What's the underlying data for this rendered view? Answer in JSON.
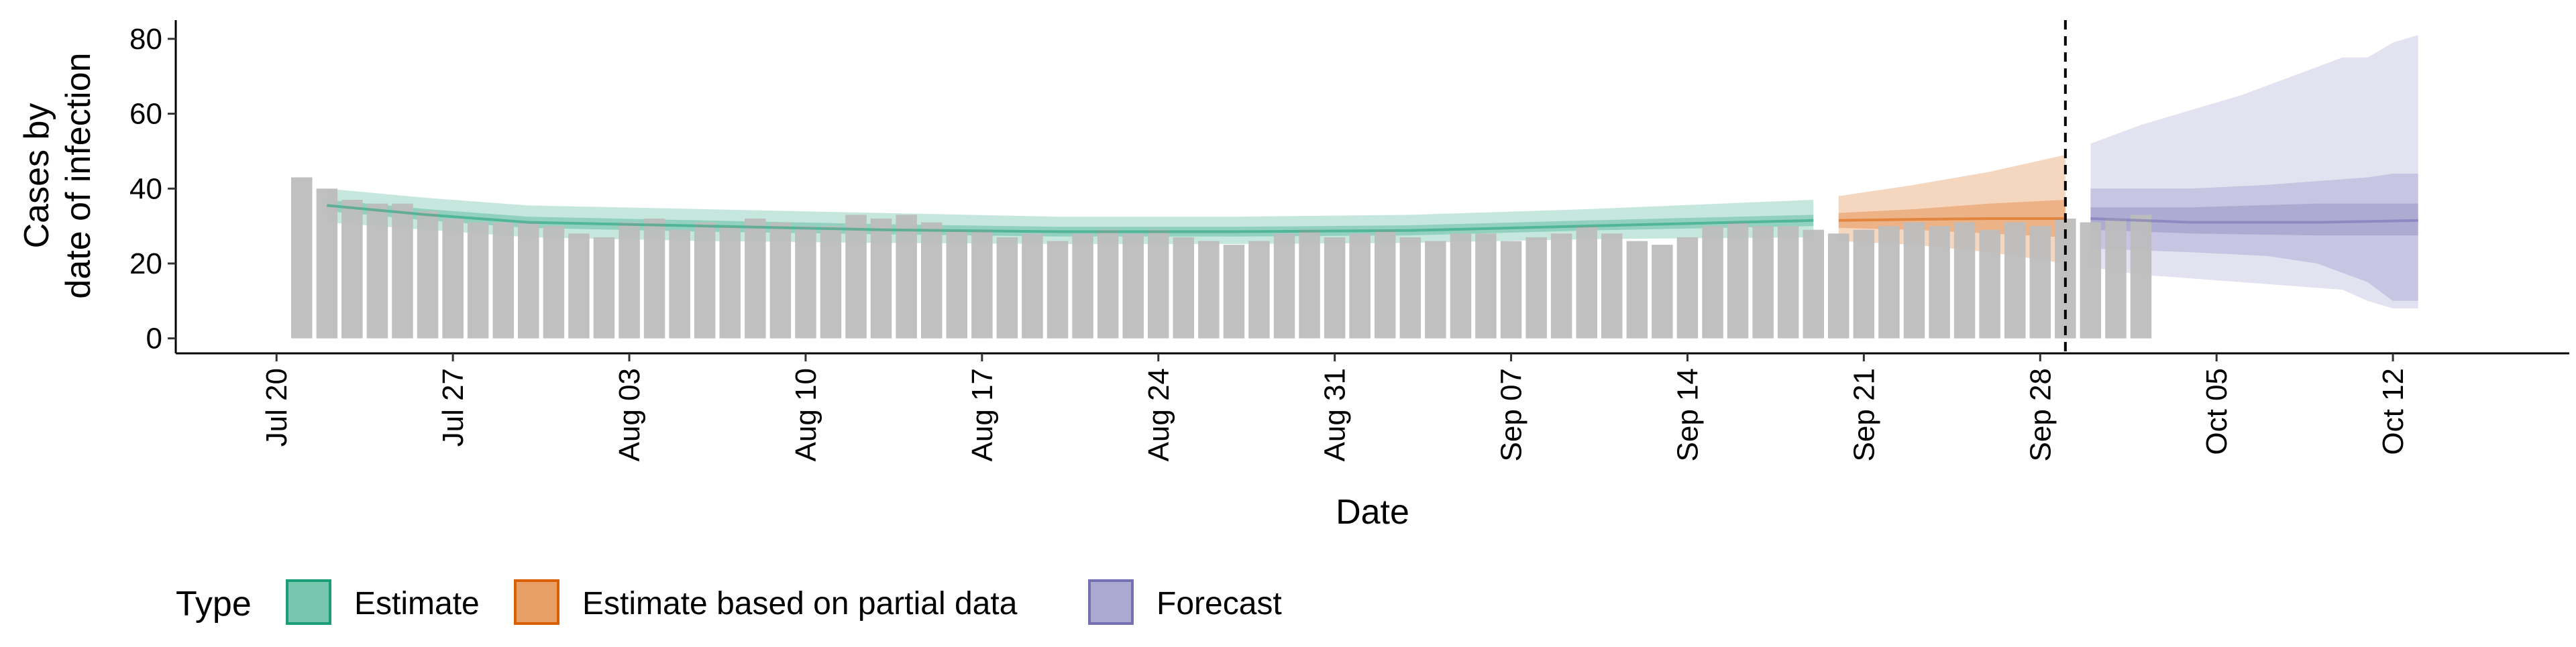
{
  "chart_data": {
    "type": "bar",
    "xlabel": "Date",
    "ylabel_lines": [
      "Cases by",
      "date of infection"
    ],
    "y_ticks": [
      0,
      20,
      40,
      60,
      80
    ],
    "ylim": [
      -4,
      85
    ],
    "x_range": [
      "2020-07-16",
      "2020-10-19"
    ],
    "x_ticks": [
      {
        "date": "2020-07-20",
        "label": "Jul 20"
      },
      {
        "date": "2020-07-27",
        "label": "Jul 27"
      },
      {
        "date": "2020-08-03",
        "label": "Aug 03"
      },
      {
        "date": "2020-08-10",
        "label": "Aug 10"
      },
      {
        "date": "2020-08-17",
        "label": "Aug 17"
      },
      {
        "date": "2020-08-24",
        "label": "Aug 24"
      },
      {
        "date": "2020-08-31",
        "label": "Aug 31"
      },
      {
        "date": "2020-09-07",
        "label": "Sep 07"
      },
      {
        "date": "2020-09-14",
        "label": "Sep 14"
      },
      {
        "date": "2020-09-21",
        "label": "Sep 21"
      },
      {
        "date": "2020-09-28",
        "label": "Sep 28"
      },
      {
        "date": "2020-10-05",
        "label": "Oct 05"
      },
      {
        "date": "2020-10-12",
        "label": "Oct 12"
      }
    ],
    "reported_cases": {
      "start_date": "2020-07-21",
      "bar_color": "#bdbdbd",
      "values": [
        43,
        40,
        37,
        36,
        36,
        34,
        32,
        31,
        31,
        31,
        30,
        28,
        27,
        31,
        32,
        29,
        31,
        30,
        32,
        31,
        30,
        30,
        33,
        32,
        33,
        31,
        29,
        29,
        27,
        28,
        26,
        28,
        29,
        28,
        29,
        27,
        26,
        25,
        26,
        28,
        29,
        27,
        28,
        29,
        27,
        26,
        28,
        28,
        26,
        27,
        28,
        30,
        28,
        26,
        25,
        27,
        30,
        31,
        30,
        30,
        29,
        28,
        29,
        30,
        31,
        30,
        31,
        29,
        31,
        30,
        32,
        31,
        32,
        33
      ]
    },
    "cutoff_date": "2020-09-29",
    "series": [
      {
        "name": "Estimate",
        "color": "#1b9e77",
        "start_date": "2020-07-22",
        "end_date": "2020-09-19",
        "median": [
          [
            0,
            35.5
          ],
          [
            4,
            33
          ],
          [
            8,
            31
          ],
          [
            15,
            30
          ],
          [
            22,
            29
          ],
          [
            29,
            28.5
          ],
          [
            36,
            28.5
          ],
          [
            43,
            28.8
          ],
          [
            50,
            30
          ],
          [
            59,
            31.5
          ]
        ],
        "inner_lower": [
          [
            0,
            34
          ],
          [
            4,
            31.5
          ],
          [
            8,
            29.5
          ],
          [
            15,
            28.5
          ],
          [
            22,
            27.8
          ],
          [
            29,
            27.2
          ],
          [
            36,
            27.2
          ],
          [
            43,
            27.5
          ],
          [
            50,
            28.8
          ],
          [
            59,
            30
          ]
        ],
        "inner_upper": [
          [
            0,
            37
          ],
          [
            4,
            34.5
          ],
          [
            8,
            32.5
          ],
          [
            15,
            31.5
          ],
          [
            22,
            30.5
          ],
          [
            29,
            29.8
          ],
          [
            36,
            29.8
          ],
          [
            43,
            30.2
          ],
          [
            50,
            31.5
          ],
          [
            59,
            33
          ]
        ],
        "outer_lower": [
          [
            0,
            31
          ],
          [
            4,
            29
          ],
          [
            8,
            27
          ],
          [
            15,
            26
          ],
          [
            22,
            25.5
          ],
          [
            29,
            25.2
          ],
          [
            36,
            25.2
          ],
          [
            43,
            25.5
          ],
          [
            50,
            26.5
          ],
          [
            59,
            27
          ]
        ],
        "outer_upper": [
          [
            0,
            40
          ],
          [
            4,
            37.5
          ],
          [
            8,
            35.5
          ],
          [
            15,
            34.5
          ],
          [
            22,
            33.5
          ],
          [
            29,
            32.5
          ],
          [
            36,
            32.5
          ],
          [
            43,
            33
          ],
          [
            50,
            34.5
          ],
          [
            59,
            37
          ]
        ]
      },
      {
        "name": "Estimate based on partial data",
        "color": "#d95f02",
        "start_date": "2020-09-20",
        "end_date": "2020-09-29",
        "median": [
          [
            0,
            31.5
          ],
          [
            3,
            31.8
          ],
          [
            6,
            32
          ],
          [
            9,
            32
          ]
        ],
        "inner_lower": [
          [
            0,
            29.5
          ],
          [
            3,
            29
          ],
          [
            6,
            28
          ],
          [
            9,
            27
          ]
        ],
        "inner_upper": [
          [
            0,
            33.5
          ],
          [
            3,
            34.5
          ],
          [
            6,
            36
          ],
          [
            9,
            37
          ]
        ],
        "outer_lower": [
          [
            0,
            26
          ],
          [
            3,
            25
          ],
          [
            6,
            23
          ],
          [
            9,
            20
          ]
        ],
        "outer_upper": [
          [
            0,
            38
          ],
          [
            3,
            41
          ],
          [
            6,
            44.5
          ],
          [
            9,
            49
          ]
        ]
      },
      {
        "name": "Forecast",
        "color": "#7570b3",
        "start_date": "2020-09-30",
        "end_date": "2020-10-13",
        "median": [
          [
            0,
            32
          ],
          [
            4,
            31
          ],
          [
            9,
            31
          ],
          [
            13,
            31.5
          ]
        ],
        "inner_lower": [
          [
            0,
            29
          ],
          [
            4,
            28
          ],
          [
            9,
            27.5
          ],
          [
            13,
            27.5
          ]
        ],
        "inner_upper": [
          [
            0,
            35
          ],
          [
            4,
            35
          ],
          [
            9,
            36
          ],
          [
            13,
            36
          ]
        ],
        "outer_lower": [
          [
            0,
            24
          ],
          [
            4,
            23
          ],
          [
            7,
            22
          ],
          [
            9,
            20
          ],
          [
            11,
            15
          ],
          [
            12,
            10
          ],
          [
            13,
            10
          ]
        ],
        "outer_upper": [
          [
            0,
            40
          ],
          [
            4,
            40
          ],
          [
            7,
            41
          ],
          [
            9,
            42
          ],
          [
            11,
            43
          ],
          [
            12,
            44
          ],
          [
            13,
            44
          ]
        ],
        "wide_lower": [
          [
            0,
            19
          ],
          [
            2,
            17
          ],
          [
            4,
            16
          ],
          [
            6,
            15
          ],
          [
            8,
            14
          ],
          [
            10,
            13
          ],
          [
            11,
            10
          ],
          [
            12,
            8
          ],
          [
            13,
            8
          ]
        ],
        "wide_upper": [
          [
            0,
            52
          ],
          [
            2,
            57
          ],
          [
            4,
            61
          ],
          [
            6,
            65
          ],
          [
            8,
            70
          ],
          [
            10,
            75
          ],
          [
            11,
            75
          ],
          [
            12,
            79
          ],
          [
            13,
            81
          ]
        ]
      }
    ],
    "legend": {
      "title": "Type",
      "position": "bottom",
      "items": [
        "Estimate",
        "Estimate based on partial data",
        "Forecast"
      ]
    }
  }
}
